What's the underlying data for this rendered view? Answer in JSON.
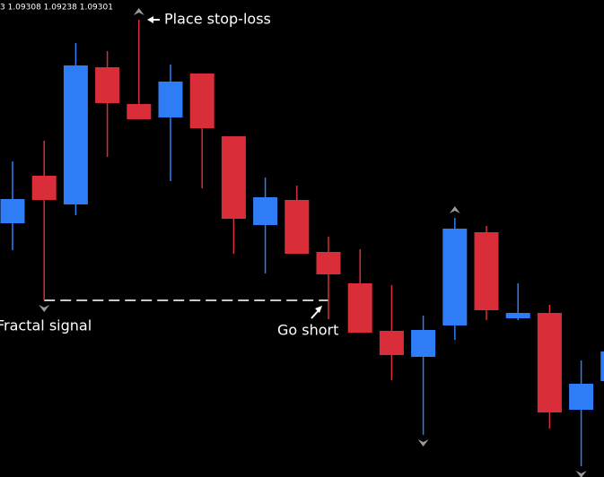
{
  "chart_data": {
    "type": "candlestick",
    "header": "3 1.09308 1.09238 1.09301",
    "open": [
      1.09251,
      1.09304,
      1.09272,
      1.09425,
      1.09384,
      1.09369,
      1.09418,
      1.09348,
      1.09249,
      1.09277,
      1.09219,
      1.09184,
      1.09131,
      1.09102,
      1.09137,
      1.09241,
      1.09145,
      1.09151,
      1.09043,
      1.09075
    ],
    "high": [
      1.0932,
      1.09343,
      1.09452,
      1.09443,
      1.09478,
      1.09428,
      1.09418,
      1.09348,
      1.09302,
      1.09293,
      1.09236,
      1.09222,
      1.09182,
      1.09148,
      1.09257,
      1.09248,
      1.09184,
      1.0916,
      1.09098,
      1.0912
    ],
    "low": [
      1.09221,
      1.09165,
      1.0926,
      1.09325,
      1.09367,
      1.09298,
      1.0929,
      1.09217,
      1.09195,
      1.09217,
      1.09144,
      1.09129,
      1.09076,
      1.09015,
      1.09121,
      1.09143,
      1.09143,
      1.09022,
      1.0898,
      1.0906
    ],
    "close": [
      1.09278,
      1.09277,
      1.09427,
      1.09385,
      1.09367,
      1.09409,
      1.09357,
      1.09256,
      1.0928,
      1.09217,
      1.09194,
      1.09129,
      1.09104,
      1.09132,
      1.09245,
      1.09154,
      1.09151,
      1.0904,
      1.09072,
      1.09108
    ],
    "up_color": "#2f7df6",
    "down_color": "#d92e3a",
    "ylim": [
      1.08968,
      1.095
    ],
    "fractals_up": [
      4,
      14
    ],
    "fractals_down": [
      1,
      13,
      18
    ],
    "annotations": [
      "Place stop-loss",
      "Fractal signal",
      "Go short"
    ]
  }
}
